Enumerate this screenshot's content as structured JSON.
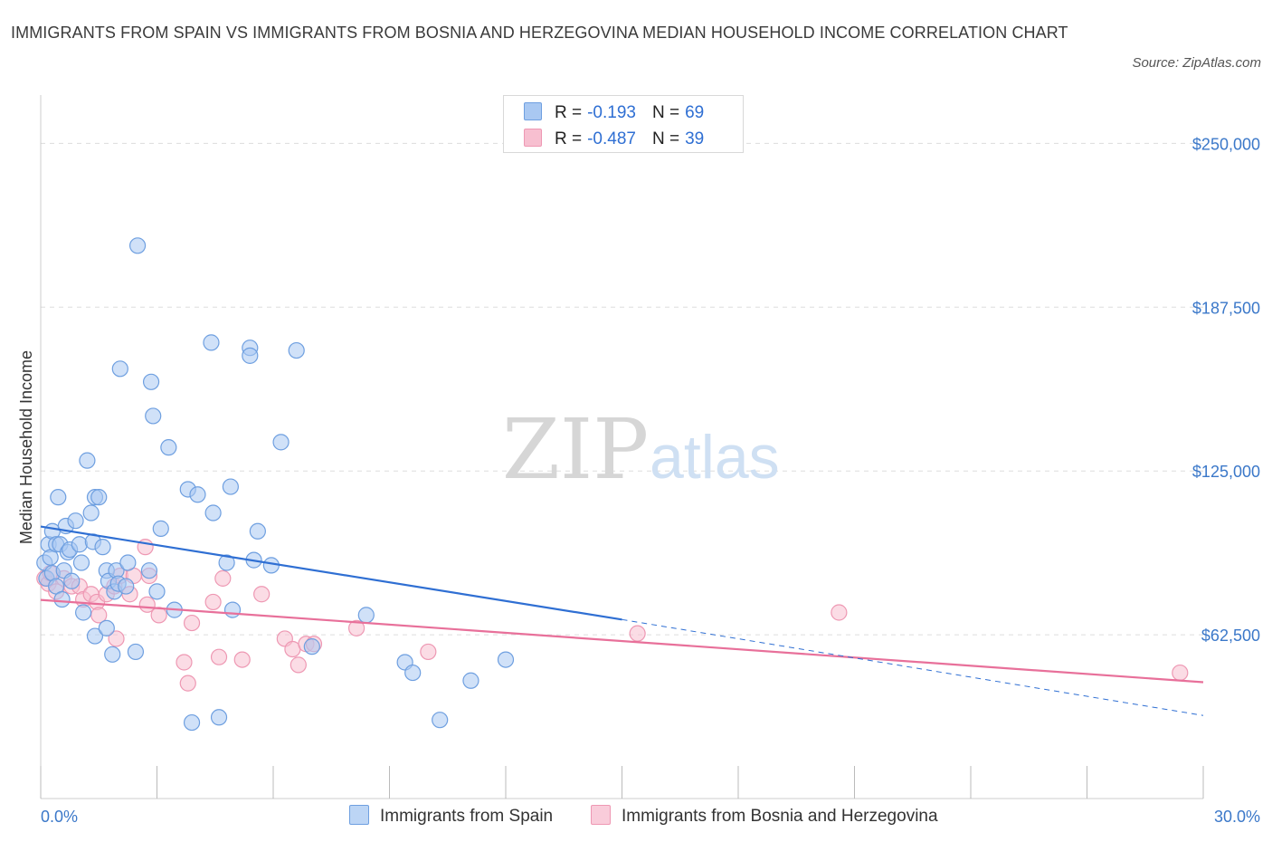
{
  "title": "IMMIGRANTS FROM SPAIN VS IMMIGRANTS FROM BOSNIA AND HERZEGOVINA MEDIAN HOUSEHOLD INCOME CORRELATION CHART",
  "source": "Source: ZipAtlas.com",
  "watermark": {
    "zip": "ZIP",
    "atlas": "atlas"
  },
  "legend": {
    "rows": [
      {
        "r_label": "R =",
        "r_value": "-0.193",
        "n_label": "N =",
        "n_value": "69"
      },
      {
        "r_label": "R =",
        "r_value": "-0.487",
        "n_label": "N =",
        "n_value": "39"
      }
    ]
  },
  "bottom_legend": {
    "series1": "Immigrants from Spain",
    "series2": "Immigrants from Bosnia and Herzegovina"
  },
  "colors": {
    "spain_fill": "#a9c8f2",
    "spain_stroke": "#6e9fe0",
    "spain_line": "#2f6fd3",
    "bosnia_fill": "#f7bfd0",
    "bosnia_stroke": "#ee98b3",
    "bosnia_line": "#e8709a",
    "grid": "#dddddd",
    "axis_text": "#3b78c9"
  },
  "chart_data": {
    "type": "scatter",
    "title": "IMMIGRANTS FROM SPAIN VS IMMIGRANTS FROM BOSNIA AND HERZEGOVINA MEDIAN HOUSEHOLD INCOME CORRELATION CHART",
    "xlabel": "",
    "ylabel": "Median Household Income",
    "xlim": [
      0,
      30
    ],
    "ylim": [
      0,
      265000
    ],
    "x_tick_labels": [
      "0.0%",
      "30.0%"
    ],
    "y_ticks": [
      62500,
      125000,
      187500,
      250000
    ],
    "y_tick_labels": [
      "$62,500",
      "$125,000",
      "$187,500",
      "$250,000"
    ],
    "grid": true,
    "legend_position": "top-center",
    "series": [
      {
        "name": "Immigrants from Spain",
        "R": -0.193,
        "N": 69,
        "trend": {
          "x0": 0,
          "y0": 103800,
          "x1": 15.0,
          "y1": 68300,
          "dashed_to_x": 30,
          "dashed_to_y": 31700
        },
        "points": [
          [
            0.1,
            90000
          ],
          [
            0.15,
            84000
          ],
          [
            0.2,
            97000
          ],
          [
            0.25,
            92000
          ],
          [
            0.3,
            86000
          ],
          [
            0.3,
            102000
          ],
          [
            0.4,
            97000
          ],
          [
            0.4,
            81000
          ],
          [
            0.45,
            115000
          ],
          [
            0.5,
            97000
          ],
          [
            0.55,
            76000
          ],
          [
            0.6,
            87000
          ],
          [
            0.65,
            104000
          ],
          [
            0.7,
            94000
          ],
          [
            0.75,
            95000
          ],
          [
            0.8,
            83000
          ],
          [
            0.9,
            106000
          ],
          [
            1.0,
            97000
          ],
          [
            1.05,
            90000
          ],
          [
            1.1,
            71000
          ],
          [
            1.2,
            129000
          ],
          [
            1.3,
            109000
          ],
          [
            1.35,
            98000
          ],
          [
            1.4,
            62000
          ],
          [
            1.4,
            115000
          ],
          [
            1.5,
            115000
          ],
          [
            1.6,
            96000
          ],
          [
            1.7,
            87000
          ],
          [
            1.7,
            65000
          ],
          [
            1.75,
            83000
          ],
          [
            1.85,
            55000
          ],
          [
            1.9,
            79000
          ],
          [
            1.95,
            87000
          ],
          [
            2.0,
            82000
          ],
          [
            2.05,
            164000
          ],
          [
            2.2,
            81000
          ],
          [
            2.25,
            90000
          ],
          [
            2.45,
            56000
          ],
          [
            2.5,
            211000
          ],
          [
            2.8,
            87000
          ],
          [
            2.85,
            159000
          ],
          [
            2.9,
            146000
          ],
          [
            3.0,
            79000
          ],
          [
            3.1,
            103000
          ],
          [
            3.3,
            134000
          ],
          [
            3.45,
            72000
          ],
          [
            3.8,
            118000
          ],
          [
            3.9,
            29000
          ],
          [
            4.05,
            116000
          ],
          [
            4.4,
            174000
          ],
          [
            4.45,
            109000
          ],
          [
            4.6,
            31000
          ],
          [
            4.8,
            90000
          ],
          [
            4.9,
            119000
          ],
          [
            4.95,
            72000
          ],
          [
            5.4,
            172000
          ],
          [
            5.4,
            169000
          ],
          [
            5.5,
            91000
          ],
          [
            5.6,
            102000
          ],
          [
            5.95,
            89000
          ],
          [
            6.2,
            136000
          ],
          [
            6.6,
            171000
          ],
          [
            7.0,
            58000
          ],
          [
            8.4,
            70000
          ],
          [
            9.4,
            52000
          ],
          [
            9.6,
            48000
          ],
          [
            10.3,
            30000
          ],
          [
            11.1,
            45000
          ],
          [
            12.0,
            53000
          ]
        ]
      },
      {
        "name": "Immigrants from Bosnia and Herzegovina",
        "R": -0.487,
        "N": 39,
        "trend": {
          "x0": 0,
          "y0": 75800,
          "x1": 30,
          "y1": 44400
        },
        "points": [
          [
            0.1,
            84000
          ],
          [
            0.2,
            82000
          ],
          [
            0.25,
            86000
          ],
          [
            0.4,
            79000
          ],
          [
            0.6,
            84000
          ],
          [
            0.8,
            81000
          ],
          [
            1.0,
            81000
          ],
          [
            1.1,
            76000
          ],
          [
            1.3,
            78000
          ],
          [
            1.45,
            75000
          ],
          [
            1.5,
            70000
          ],
          [
            1.7,
            78000
          ],
          [
            1.9,
            81000
          ],
          [
            1.95,
            61000
          ],
          [
            2.05,
            85000
          ],
          [
            2.3,
            78000
          ],
          [
            2.4,
            85000
          ],
          [
            2.7,
            96000
          ],
          [
            2.75,
            74000
          ],
          [
            2.8,
            85000
          ],
          [
            3.05,
            70000
          ],
          [
            3.7,
            52000
          ],
          [
            3.8,
            44000
          ],
          [
            3.9,
            67000
          ],
          [
            4.45,
            75000
          ],
          [
            4.6,
            54000
          ],
          [
            4.7,
            84000
          ],
          [
            5.2,
            53000
          ],
          [
            5.7,
            78000
          ],
          [
            6.3,
            61000
          ],
          [
            6.5,
            57000
          ],
          [
            6.65,
            51000
          ],
          [
            6.85,
            59000
          ],
          [
            7.05,
            59000
          ],
          [
            8.15,
            65000
          ],
          [
            10.0,
            56000
          ],
          [
            15.4,
            63000
          ],
          [
            20.6,
            71000
          ],
          [
            29.4,
            48000
          ]
        ]
      }
    ]
  }
}
